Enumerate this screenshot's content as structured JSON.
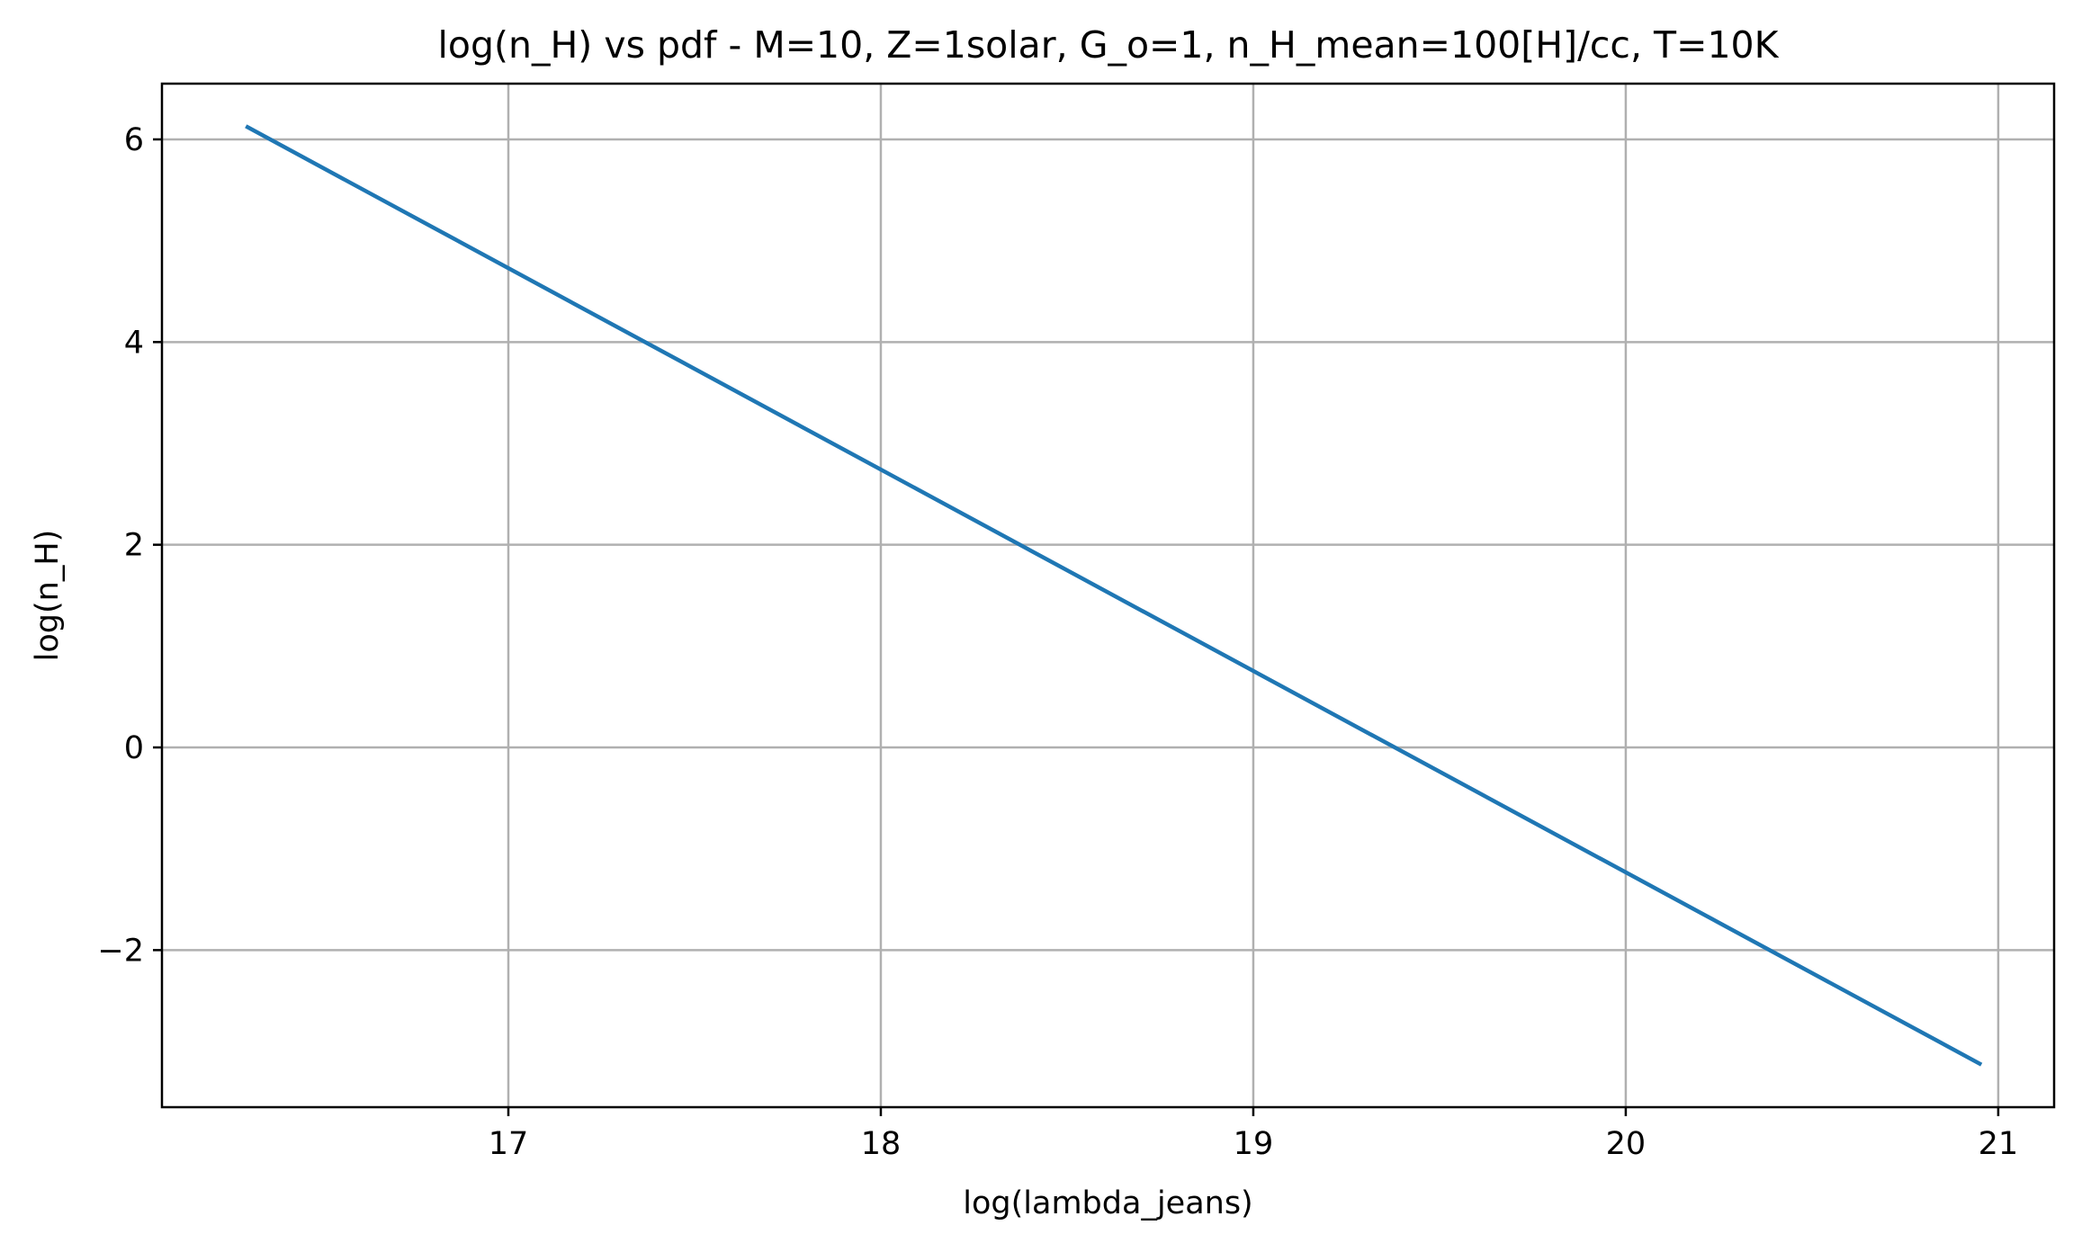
{
  "chart_data": {
    "type": "line",
    "title": "log(n_H) vs pdf - M=10, Z=1solar, G_o=1, n_H_mean=100[H]/cc, T=10K",
    "xlabel": "log(lambda_jeans)",
    "ylabel": "log(n_H)",
    "xlim": [
      16.07,
      21.15
    ],
    "ylim": [
      -3.55,
      6.55
    ],
    "xticks": [
      17,
      18,
      19,
      20,
      21
    ],
    "yticks": [
      -2,
      0,
      2,
      4,
      6
    ],
    "ytick_labels": [
      "−2",
      "0",
      "2",
      "4",
      "6"
    ],
    "grid": true,
    "legend": "none",
    "series": [
      {
        "color": "#1f77b4",
        "x": [
          16.3,
          20.95
        ],
        "y": [
          6.12,
          -3.12
        ]
      }
    ]
  }
}
